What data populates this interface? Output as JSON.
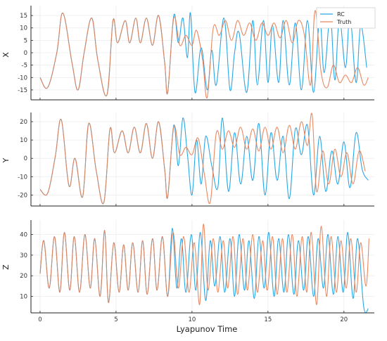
{
  "colors": {
    "rc": "#2aa7e6",
    "truth": "#e8835a",
    "grid": "#ececec",
    "axis": "#222222"
  },
  "legend": {
    "entries": [
      "RC",
      "Truth"
    ],
    "placement": "top-right"
  },
  "xlabel": "Lyapunov Time",
  "chart_data": {
    "type": "line",
    "xlim": [
      -0.6,
      22.0
    ],
    "xticks": [
      "0",
      "5",
      "10",
      "15",
      "20"
    ],
    "xtick_values": [
      0,
      5,
      10,
      15,
      20
    ],
    "grid": true,
    "divergence_at": 8.4,
    "panels": [
      {
        "name": "X",
        "ylabel": "X",
        "ylim": [
          -19,
          19
        ],
        "yticks": [
          "15",
          "10",
          "5",
          "0",
          "-5",
          "-10",
          "-15"
        ],
        "ytick_values": [
          15,
          10,
          5,
          0,
          -5,
          -10,
          -15
        ],
        "series": [
          {
            "name": "RC",
            "x": [
              0,
              0.5,
              1.1,
              1.5,
              2.1,
              2.5,
              2.9,
              3.4,
              3.8,
              4.4,
              4.8,
              5.1,
              5.6,
              5.9,
              6.3,
              6.6,
              7.0,
              7.4,
              7.8,
              8.2,
              8.4,
              8.8,
              9.1,
              9.4,
              9.7,
              9.9,
              10.2,
              10.6,
              11.0,
              11.3,
              11.6,
              12.1,
              12.5,
              12.8,
              13.1,
              13.6,
              14.0,
              14.3,
              14.7,
              15.0,
              15.3,
              15.7,
              16.0,
              16.4,
              16.8,
              17.2,
              17.6,
              18.0,
              18.4,
              18.7,
              19.1,
              19.4,
              19.7,
              20.1,
              20.4,
              20.8,
              21.1,
              21.5
            ],
            "y": [
              -10,
              -14,
              0,
              16,
              -4,
              -15,
              0,
              14,
              -3,
              -17,
              13,
              4,
              13,
              4,
              14,
              4,
              14,
              3,
              15,
              -4,
              -16,
              15,
              4,
              14,
              -2,
              16,
              -16,
              2,
              -15,
              1,
              -13,
              14,
              -15,
              0,
              8,
              -16,
              13,
              -13,
              13,
              -12,
              11,
              -12,
              13,
              -13,
              12,
              -15,
              13,
              -16,
              14,
              -8,
              15,
              -11,
              14,
              -6,
              15,
              -12,
              11,
              -6
            ]
          },
          {
            "name": "Truth",
            "x": [
              0,
              0.5,
              1.1,
              1.5,
              2.1,
              2.5,
              2.9,
              3.4,
              3.8,
              4.4,
              4.8,
              5.1,
              5.6,
              5.9,
              6.3,
              6.6,
              7.0,
              7.4,
              7.8,
              8.2,
              8.4,
              8.8,
              9.2,
              9.6,
              10.0,
              10.3,
              10.7,
              11.0,
              11.4,
              11.8,
              12.2,
              12.6,
              13.0,
              13.4,
              13.8,
              14.2,
              14.6,
              15.0,
              15.4,
              15.8,
              16.2,
              16.6,
              17.0,
              17.4,
              17.8,
              18.1,
              18.5,
              18.9,
              19.3,
              19.7,
              20.1,
              20.5,
              20.9,
              21.3,
              21.6
            ],
            "y": [
              -10,
              -14,
              0,
              16,
              -4,
              -15,
              0,
              14,
              -3,
              -17,
              13,
              4,
              13,
              4,
              14,
              4,
              14,
              3,
              15,
              -4,
              -16,
              14,
              3,
              7,
              3,
              9,
              -3,
              -18,
              10,
              7,
              13,
              5,
              13,
              7,
              12,
              5,
              12,
              7,
              12,
              6,
              13,
              4,
              13,
              7,
              -13,
              17,
              -8,
              -14,
              -5,
              -12,
              -9,
              -12,
              -6,
              -13,
              -10
            ]
          }
        ]
      },
      {
        "name": "Y",
        "ylabel": "Y",
        "ylim": [
          -26,
          25
        ],
        "yticks": [
          "20",
          "10",
          "0",
          "-10",
          "-20"
        ],
        "ytick_values": [
          20,
          10,
          0,
          -10,
          -20
        ],
        "series": [
          {
            "name": "RC",
            "x": [
              0,
              0.5,
              1.0,
              1.4,
              1.9,
              2.3,
              2.8,
              3.2,
              3.7,
              4.2,
              4.6,
              4.9,
              5.4,
              5.8,
              6.2,
              6.6,
              7.0,
              7.4,
              7.8,
              8.2,
              8.4,
              8.8,
              9.1,
              9.4,
              9.7,
              10.0,
              10.3,
              10.6,
              10.9,
              11.3,
              11.7,
              12.0,
              12.4,
              12.8,
              13.2,
              13.6,
              14.0,
              14.4,
              14.8,
              15.2,
              15.6,
              16.0,
              16.4,
              16.8,
              17.2,
              17.6,
              18.0,
              18.4,
              18.8,
              19.2,
              19.6,
              20.0,
              20.4,
              20.8,
              21.2,
              21.6
            ],
            "y": [
              -17,
              -19,
              1,
              21,
              -15,
              0,
              -21,
              19,
              -7,
              -24,
              16,
              3,
              15,
              3,
              17,
              3,
              19,
              0,
              20,
              -6,
              -21,
              18,
              -4,
              22,
              2,
              -20,
              10,
              -14,
              12,
              -4,
              -16,
              22,
              -18,
              14,
              -14,
              12,
              -12,
              19,
              -20,
              14,
              -12,
              12,
              -22,
              16,
              2,
              18,
              -20,
              12,
              -18,
              4,
              -14,
              9,
              -16,
              14,
              -6,
              -12
            ]
          },
          {
            "name": "Truth",
            "x": [
              0,
              0.5,
              1.0,
              1.4,
              1.9,
              2.3,
              2.8,
              3.2,
              3.7,
              4.2,
              4.6,
              4.9,
              5.4,
              5.8,
              6.2,
              6.6,
              7.0,
              7.4,
              7.8,
              8.2,
              8.4,
              8.8,
              9.2,
              9.6,
              10.0,
              10.4,
              10.8,
              11.2,
              11.6,
              12.0,
              12.4,
              12.8,
              13.2,
              13.6,
              14.0,
              14.4,
              14.8,
              15.2,
              15.6,
              16.0,
              16.4,
              16.8,
              17.2,
              17.6,
              17.9,
              18.2,
              18.6,
              19.0,
              19.4,
              19.8,
              20.2,
              20.6,
              21.0,
              21.4
            ],
            "y": [
              -17,
              -19,
              1,
              21,
              -15,
              0,
              -21,
              19,
              -7,
              -24,
              16,
              3,
              15,
              3,
              17,
              3,
              19,
              0,
              20,
              -6,
              -21,
              17,
              2,
              6,
              2,
              11,
              -8,
              -24,
              14,
              5,
              15,
              6,
              17,
              5,
              16,
              4,
              17,
              5,
              17,
              3,
              18,
              5,
              20,
              7,
              24,
              -18,
              4,
              -14,
              5,
              -10,
              3,
              -14,
              4,
              -7
            ]
          }
        ]
      },
      {
        "name": "Z",
        "ylabel": "Z",
        "ylim": [
          2,
          47
        ],
        "yticks": [
          "40",
          "30",
          "20",
          "10"
        ],
        "ytick_values": [
          40,
          30,
          20,
          10
        ],
        "series": [
          {
            "name": "RC",
            "x": [
              0,
              0.25,
              0.6,
              0.95,
              1.3,
              1.6,
              1.95,
              2.25,
              2.6,
              2.95,
              3.3,
              3.6,
              3.95,
              4.25,
              4.5,
              4.85,
              5.2,
              5.5,
              5.8,
              6.1,
              6.45,
              6.75,
              7.05,
              7.4,
              7.7,
              8.05,
              8.4,
              8.7,
              9.0,
              9.3,
              9.6,
              9.95,
              10.25,
              10.55,
              10.9,
              11.2,
              11.5,
              11.85,
              12.15,
              12.5,
              12.8,
              13.1,
              13.45,
              13.75,
              14.1,
              14.4,
              14.75,
              15.05,
              15.4,
              15.7,
              16.05,
              16.35,
              16.7,
              17.0,
              17.35,
              17.65,
              18.0,
              18.3,
              18.65,
              18.95,
              19.3,
              19.6,
              19.95,
              20.25,
              20.6,
              20.9,
              21.3,
              21.6
            ],
            "y": [
              21,
              37,
              14,
              39,
              12,
              41,
              13,
              39,
              12,
              40,
              14,
              38,
              10,
              42,
              7,
              36,
              12,
              35,
              13,
              36,
              12,
              37,
              11,
              38,
              13,
              39,
              10,
              43,
              14,
              38,
              12,
              40,
              13,
              41,
              8,
              37,
              15,
              39,
              12,
              38,
              10,
              40,
              13,
              37,
              9,
              39,
              14,
              41,
              10,
              38,
              12,
              40,
              11,
              37,
              13,
              39,
              10,
              38,
              14,
              40,
              11,
              39,
              12,
              41,
              9,
              38,
              5,
              4
            ]
          },
          {
            "name": "Truth",
            "x": [
              0,
              0.25,
              0.6,
              0.95,
              1.3,
              1.6,
              1.95,
              2.25,
              2.6,
              2.95,
              3.3,
              3.6,
              3.95,
              4.25,
              4.5,
              4.85,
              5.2,
              5.5,
              5.8,
              6.1,
              6.45,
              6.75,
              7.05,
              7.4,
              7.7,
              8.05,
              8.4,
              8.75,
              9.1,
              9.45,
              9.8,
              10.15,
              10.5,
              10.75,
              11.05,
              11.4,
              11.7,
              12.05,
              12.35,
              12.7,
              13.0,
              13.35,
              13.65,
              14.0,
              14.3,
              14.65,
              14.95,
              15.3,
              15.6,
              15.95,
              16.25,
              16.6,
              16.9,
              17.25,
              17.55,
              17.85,
              18.2,
              18.5,
              18.85,
              19.15,
              19.5,
              19.8,
              20.15,
              20.45,
              20.8,
              21.1,
              21.45,
              21.65
            ],
            "y": [
              21,
              37,
              14,
              39,
              12,
              41,
              13,
              39,
              12,
              40,
              14,
              38,
              10,
              42,
              7,
              36,
              12,
              35,
              13,
              36,
              12,
              37,
              11,
              38,
              13,
              39,
              10,
              41,
              14,
              39,
              12,
              36,
              6,
              45,
              13,
              38,
              12,
              37,
              14,
              39,
              11,
              38,
              13,
              40,
              12,
              37,
              13,
              39,
              11,
              38,
              12,
              40,
              10,
              39,
              12,
              41,
              6,
              44,
              10,
              39,
              12,
              37,
              14,
              38,
              12,
              36,
              15,
              38
            ]
          }
        ]
      }
    ]
  }
}
